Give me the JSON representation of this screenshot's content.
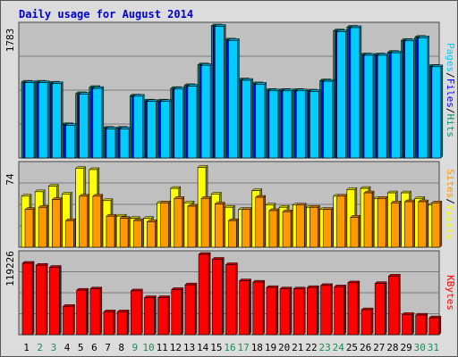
{
  "chart_data": [
    {
      "type": "bar",
      "title": "Daily usage for August 2014",
      "panel_max_label": "1783",
      "ylabel_parts": [
        "Pages",
        "Files",
        "Hits"
      ],
      "ylim": [
        0,
        1783
      ],
      "grid": true,
      "categories": [
        "1",
        "2",
        "3",
        "4",
        "5",
        "6",
        "7",
        "8",
        "9",
        "10",
        "11",
        "12",
        "13",
        "14",
        "15",
        "16",
        "17",
        "18",
        "19",
        "20",
        "21",
        "22",
        "23",
        "24",
        "25",
        "26",
        "27",
        "28",
        "29",
        "30",
        "31"
      ],
      "series": [
        {
          "name": "Hits",
          "values": [
            1023,
            1023,
            1010,
            450,
            868,
            952,
            401,
            401,
            837,
            769,
            769,
            938,
            977,
            1257,
            1783,
            1592,
            1054,
            1001,
            912,
            912,
            912,
            904,
            1042,
            1716,
            1765,
            1392,
            1392,
            1426,
            1586,
            1628,
            1237
          ]
        },
        {
          "name": "Files",
          "values": [
            1007,
            1007,
            994,
            437,
            853,
            934,
            390,
            390,
            823,
            757,
            757,
            922,
            961,
            1241,
            1769,
            1578,
            1040,
            987,
            898,
            898,
            898,
            891,
            1028,
            1700,
            1751,
            1378,
            1378,
            1412,
            1572,
            1614,
            1223
          ]
        },
        {
          "name": "Pages",
          "values": [
            1017,
            1017,
            1004,
            440,
            862,
            938,
            392,
            392,
            833,
            763,
            763,
            930,
            970,
            1250,
            1777,
            1586,
            1048,
            995,
            906,
            906,
            906,
            898,
            1035,
            1704,
            1759,
            1386,
            1386,
            1420,
            1580,
            1622,
            1231
          ]
        }
      ]
    },
    {
      "type": "bar",
      "panel_max_label": "74",
      "ylabel_parts": [
        "Sites",
        "Visits"
      ],
      "ylim": [
        0,
        74
      ],
      "grid": true,
      "categories": [
        "1",
        "2",
        "3",
        "4",
        "5",
        "6",
        "7",
        "8",
        "9",
        "10",
        "11",
        "12",
        "13",
        "14",
        "15",
        "16",
        "17",
        "18",
        "19",
        "20",
        "21",
        "22",
        "23",
        "24",
        "25",
        "26",
        "27",
        "28",
        "29",
        "30",
        "31"
      ],
      "series": [
        {
          "name": "Visits",
          "values": [
            46,
            50,
            55,
            48,
            71,
            70,
            42,
            28,
            26,
            26,
            40,
            53,
            40,
            72,
            48,
            36,
            34,
            51,
            38,
            36,
            38,
            36,
            34,
            46,
            52,
            53,
            44,
            49,
            49,
            44,
            38
          ]
        },
        {
          "name": "Sites",
          "values": [
            34,
            36,
            43,
            24,
            46,
            46,
            28,
            26,
            24,
            23,
            40,
            44,
            37,
            44,
            39,
            24,
            34,
            45,
            33,
            32,
            38,
            36,
            34,
            46,
            27,
            49,
            44,
            40,
            41,
            41,
            40
          ]
        }
      ]
    },
    {
      "type": "bar",
      "panel_max_label": "119226",
      "ylabel_parts": [
        "KBytes"
      ],
      "ylim": [
        0,
        119226
      ],
      "grid": true,
      "categories": [
        "1",
        "2",
        "3",
        "4",
        "5",
        "6",
        "7",
        "8",
        "9",
        "10",
        "11",
        "12",
        "13",
        "14",
        "15",
        "16",
        "17",
        "18",
        "19",
        "20",
        "21",
        "22",
        "23",
        "24",
        "25",
        "26",
        "27",
        "28",
        "29",
        "30",
        "31"
      ],
      "series": [
        {
          "name": "KBytes",
          "values": [
            106000,
            103000,
            100000,
            42000,
            66000,
            68000,
            34000,
            34000,
            65000,
            55000,
            55000,
            67000,
            74000,
            119226,
            112000,
            104000,
            80000,
            78000,
            70000,
            68000,
            68000,
            70000,
            73000,
            71000,
            77000,
            37000,
            76000,
            87000,
            30000,
            29000,
            25000
          ]
        }
      ]
    }
  ],
  "colors": {
    "hits": "#009966",
    "files": "#0000ff",
    "pages": "#00ccff",
    "visits": "#ffff00",
    "sites": "#ff9900",
    "kbytes": "#ff0000",
    "plot_bg": "#c0c0c0",
    "frame_bg": "#dcdcdc",
    "title": "#0000cc",
    "weekend_label": "#1e8a5c",
    "weekday_label": "#000000"
  },
  "weekend_days": [
    "2",
    "3",
    "9",
    "10",
    "16",
    "17",
    "23",
    "24",
    "30",
    "31"
  ]
}
